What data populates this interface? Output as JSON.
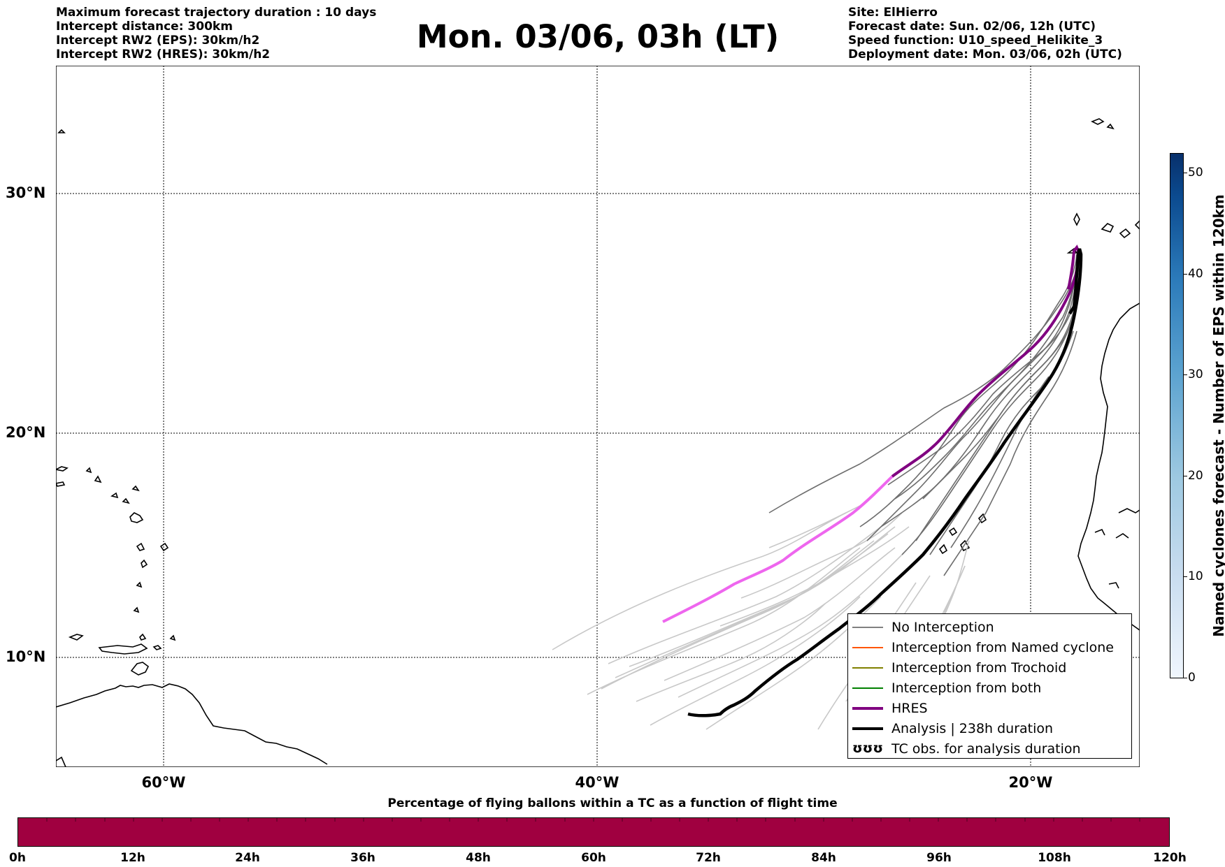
{
  "header_left": [
    "Maximum forecast trajectory duration : 10 days",
    "Intercept distance: 300km",
    "Intercept RW2 (EPS):  30km/h2",
    "Intercept RW2 (HRES): 30km/h2"
  ],
  "title": "Mon. 03/06, 03h (LT)",
  "header_right": [
    "Site: ElHierro",
    "Forecast date: Sun. 02/06, 12h (UTC)",
    "Speed function: U10_speed_Helikite_3",
    "Deployment date: Mon. 03/06, 02h (UTC)"
  ],
  "map": {
    "lat_labels": [
      "30°N",
      "20°N",
      "10°N"
    ],
    "lon_labels": [
      "60°W",
      "40°W",
      "20°W"
    ],
    "lon_range": [
      -65,
      -15
    ],
    "lat_range": [
      5.4,
      34.7
    ],
    "gridlines": "dotted",
    "colors": {
      "no_interception": "#808080",
      "no_interception_light": "#c8c8c8",
      "named_cyclone": "#ff5500",
      "trochoid": "#808000",
      "both": "#008000",
      "hres": "#800080",
      "hres_light": "#ee66ee",
      "analysis": "#000000",
      "land_outline": "#000000"
    }
  },
  "legend": [
    {
      "label": "No Interception",
      "color": "#808080",
      "style": "thin"
    },
    {
      "label": "Interception from Named cyclone",
      "color": "#ff5500",
      "style": "thin"
    },
    {
      "label": "Interception from Trochoid",
      "color": "#808000",
      "style": "thin"
    },
    {
      "label": "Interception from both",
      "color": "#008000",
      "style": "thin"
    },
    {
      "label": "HRES",
      "color": "#800080",
      "style": "thick"
    },
    {
      "label": "Analysis | 238h duration",
      "color": "#000000",
      "style": "thick"
    },
    {
      "label": "TC obs. for analysis duration",
      "color": "#000000",
      "style": "symbol",
      "symbol": "ʊʊʊ"
    }
  ],
  "colorbar_right": {
    "label": "Named cyclones forecast - Number of EPS within 120km",
    "ticks": [
      "0",
      "10",
      "20",
      "30",
      "40",
      "50"
    ],
    "range": [
      0,
      52
    ]
  },
  "colorbar_bottom": {
    "title": "Percentage of flying ballons within a TC as a function of flight time",
    "ticks": [
      "0h",
      "12h",
      "24h",
      "36h",
      "48h",
      "60h",
      "72h",
      "84h",
      "96h",
      "108h",
      "120h"
    ],
    "color": "#a00040"
  }
}
